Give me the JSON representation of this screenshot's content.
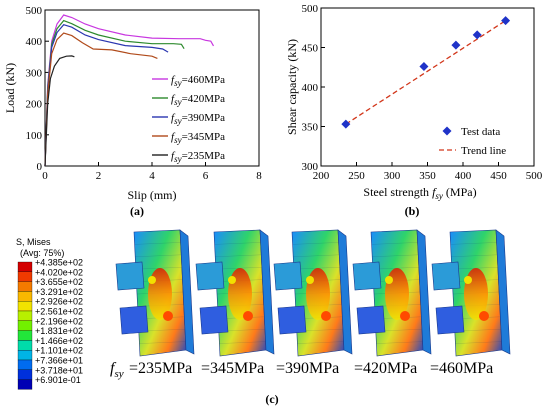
{
  "chart_data": [
    {
      "type": "line",
      "panel": "(a)",
      "xlabel": "Slip (mm)",
      "ylabel": "Load (kN)",
      "xlim": [
        0,
        8
      ],
      "ylim": [
        0,
        500
      ],
      "xticks": [
        "0",
        "2",
        "4",
        "6",
        "8"
      ],
      "yticks": [
        "0",
        "100",
        "200",
        "300",
        "400",
        "500"
      ],
      "legend_position": "lower-right",
      "series": [
        {
          "name": "fsy=460MPa",
          "color": "#c837e0",
          "x": [
            0,
            0.1,
            0.25,
            0.45,
            0.7,
            1.0,
            1.5,
            2.0,
            3.0,
            4.0,
            5.0,
            5.8,
            6.0,
            6.2,
            6.3
          ],
          "y": [
            0,
            260,
            400,
            455,
            484,
            476,
            455,
            440,
            420,
            410,
            408,
            408,
            403,
            400,
            385
          ]
        },
        {
          "name": "fsy=420MPa",
          "color": "#2d8a2d",
          "x": [
            0,
            0.1,
            0.25,
            0.45,
            0.7,
            1.0,
            1.5,
            2.0,
            3.0,
            4.0,
            4.8,
            5.1,
            5.2
          ],
          "y": [
            0,
            250,
            390,
            440,
            466,
            456,
            435,
            420,
            400,
            392,
            392,
            390,
            376
          ]
        },
        {
          "name": "fsy=390MPa",
          "color": "#2a36b0",
          "x": [
            0,
            0.1,
            0.25,
            0.45,
            0.7,
            1.0,
            1.5,
            2.0,
            3.0,
            4.0,
            4.4,
            4.6
          ],
          "y": [
            0,
            240,
            380,
            428,
            453,
            445,
            420,
            405,
            386,
            380,
            375,
            365
          ]
        },
        {
          "name": "fsy=345MPa",
          "color": "#b04a1a",
          "x": [
            0,
            0.1,
            0.25,
            0.45,
            0.7,
            1.0,
            1.4,
            1.8,
            2.5,
            3.2,
            4.0,
            4.2
          ],
          "y": [
            0,
            230,
            360,
            405,
            426,
            418,
            395,
            375,
            372,
            360,
            352,
            345
          ]
        },
        {
          "name": "fsy=235MPa",
          "color": "#222222",
          "x": [
            0,
            0.1,
            0.2,
            0.35,
            0.55,
            0.8,
            1.0,
            1.1
          ],
          "y": [
            0,
            200,
            280,
            320,
            345,
            352,
            353,
            350
          ]
        }
      ],
      "legend_labels": [
        {
          "prefix": "f",
          "sub": "sy",
          "suffix": "=460MPa"
        },
        {
          "prefix": "f",
          "sub": "sy",
          "suffix": "=420MPa"
        },
        {
          "prefix": "f",
          "sub": "sy",
          "suffix": "=390MPa"
        },
        {
          "prefix": "f",
          "sub": "sy",
          "suffix": "=345MPa"
        },
        {
          "prefix": "f",
          "sub": "sy",
          "suffix": "=235MPa"
        }
      ]
    },
    {
      "type": "scatter",
      "panel": "(b)",
      "xlabel_text": "Steel strength ",
      "xlabel_italic": "f",
      "xlabel_sub": "sy",
      "xlabel_unit": " (MPa)",
      "ylabel": "Shear capacity (kN)",
      "xlim": [
        200,
        500
      ],
      "ylim": [
        300,
        500
      ],
      "xticks": [
        "200",
        "250",
        "300",
        "350",
        "400",
        "450",
        "500"
      ],
      "yticks": [
        "300",
        "350",
        "400",
        "450",
        "500"
      ],
      "legend_position": "lower-right",
      "series": [
        {
          "name": "Test data",
          "marker": "diamond",
          "color": "#1f33c8",
          "x": [
            235,
            345,
            390,
            420,
            460
          ],
          "y": [
            353,
            426,
            453,
            466,
            484
          ]
        },
        {
          "name": "Trend line",
          "style": "dashed",
          "color": "#d2361a",
          "x": [
            235,
            460
          ],
          "y": [
            353,
            484
          ]
        }
      ]
    }
  ],
  "fem": {
    "panel": "(c)",
    "colorbar_title_1": "S, Mises",
    "colorbar_title_2": "(Avg: 75%)",
    "colorbar_values": [
      "+4.385e+02",
      "+4.020e+02",
      "+3.655e+02",
      "+3.291e+02",
      "+2.926e+02",
      "+2.561e+02",
      "+2.196e+02",
      "+1.831e+02",
      "+1.466e+02",
      "+1.101e+02",
      "+7.366e+01",
      "+3.718e+01",
      "+6.901e-01"
    ],
    "colorbar_colors": [
      "#d40000",
      "#f03a00",
      "#f57a00",
      "#f9b800",
      "#f1e300",
      "#b8f000",
      "#72f000",
      "#22e63a",
      "#00dcaa",
      "#00b4e6",
      "#006cf0",
      "#0030dc",
      "#0000b4"
    ],
    "caption_italic": "f",
    "caption_sub": "sy",
    "captions": [
      "=235MPa",
      "=345MPa",
      "=390MPa",
      "=420MPa",
      "=460MPa"
    ]
  }
}
